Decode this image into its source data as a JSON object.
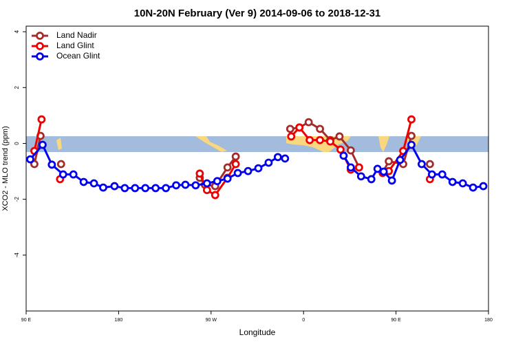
{
  "chart_data": {
    "type": "line",
    "title": "10N-20N February (Ver 9)   2014-09-06 to 2018-12-31",
    "x_label": "Longitude",
    "y_label": "XCO2 - MLO trend (ppm)",
    "xlim": [
      90,
      540
    ],
    "ylim": [
      -6,
      4.2
    ],
    "xticks": [
      {
        "value": 90,
        "label": "90 E"
      },
      180,
      {
        "value": 270,
        "label": "90 W"
      },
      {
        "value": 360,
        "label": "0"
      },
      {
        "value": 450,
        "label": "90 E"
      },
      {
        "value": 540,
        "label": "180"
      }
    ],
    "yticks": [
      -4,
      -2,
      0,
      2,
      4
    ],
    "legend": "top-left",
    "series": [
      {
        "name": "Land Nadir",
        "color": "#a52a2a",
        "x": [
          98,
          104,
          null,
          124,
          null,
          259,
          264,
          274,
          286,
          294,
          null,
          347,
          356,
          365,
          376,
          386,
          395,
          406,
          414,
          null,
          437,
          443,
          457,
          465,
          null,
          483
        ],
        "values": [
          -0.74,
          0.27,
          null,
          -0.74,
          null,
          -1.23,
          -1.48,
          -1.53,
          -0.86,
          -0.47,
          null,
          0.52,
          0.57,
          0.76,
          0.52,
          0.12,
          0.25,
          -0.25,
          -0.86,
          null,
          -1.04,
          -0.64,
          -0.74,
          0.27,
          null,
          -0.74
        ]
      },
      {
        "name": "Land Glint",
        "color": "#ee0000",
        "x": [
          98,
          105,
          null,
          123,
          null,
          259,
          266,
          274,
          286,
          294,
          null,
          348,
          356,
          366,
          376,
          386,
          396,
          406,
          414,
          null,
          437,
          443,
          457,
          465,
          null,
          483
        ],
        "values": [
          -0.27,
          0.86,
          null,
          -1.28,
          null,
          -1.08,
          -1.67,
          -1.85,
          -1.23,
          -0.74,
          null,
          0.25,
          0.57,
          0.12,
          0.12,
          0.07,
          -0.22,
          -0.94,
          -0.86,
          null,
          -1.06,
          -0.99,
          -0.27,
          0.86,
          null,
          -1.28
        ]
      },
      {
        "name": "Ocean Glint",
        "color": "#0000ee",
        "x": [
          94,
          106,
          115,
          126,
          136,
          146,
          156,
          165,
          176,
          186,
          196,
          206,
          216,
          226,
          236,
          245,
          255,
          266,
          276,
          286,
          296,
          306,
          316,
          326,
          335,
          342,
          null,
          399,
          406,
          416,
          426,
          432,
          438,
          446,
          454,
          465,
          475,
          485,
          495,
          505,
          515,
          525,
          535
        ],
        "values": [
          -0.57,
          -0.05,
          -0.76,
          -1.11,
          -1.11,
          -1.38,
          -1.43,
          -1.58,
          -1.53,
          -1.6,
          -1.6,
          -1.6,
          -1.6,
          -1.6,
          -1.5,
          -1.48,
          -1.5,
          -1.43,
          -1.35,
          -1.26,
          -1.06,
          -0.99,
          -0.89,
          -0.69,
          -0.49,
          -0.54,
          null,
          -0.44,
          -0.86,
          -1.18,
          -1.28,
          -0.91,
          -1.01,
          -1.33,
          -0.59,
          -0.05,
          -0.74,
          -1.11,
          -1.11,
          -1.38,
          -1.43,
          -1.58,
          -1.53
        ]
      }
    ]
  }
}
